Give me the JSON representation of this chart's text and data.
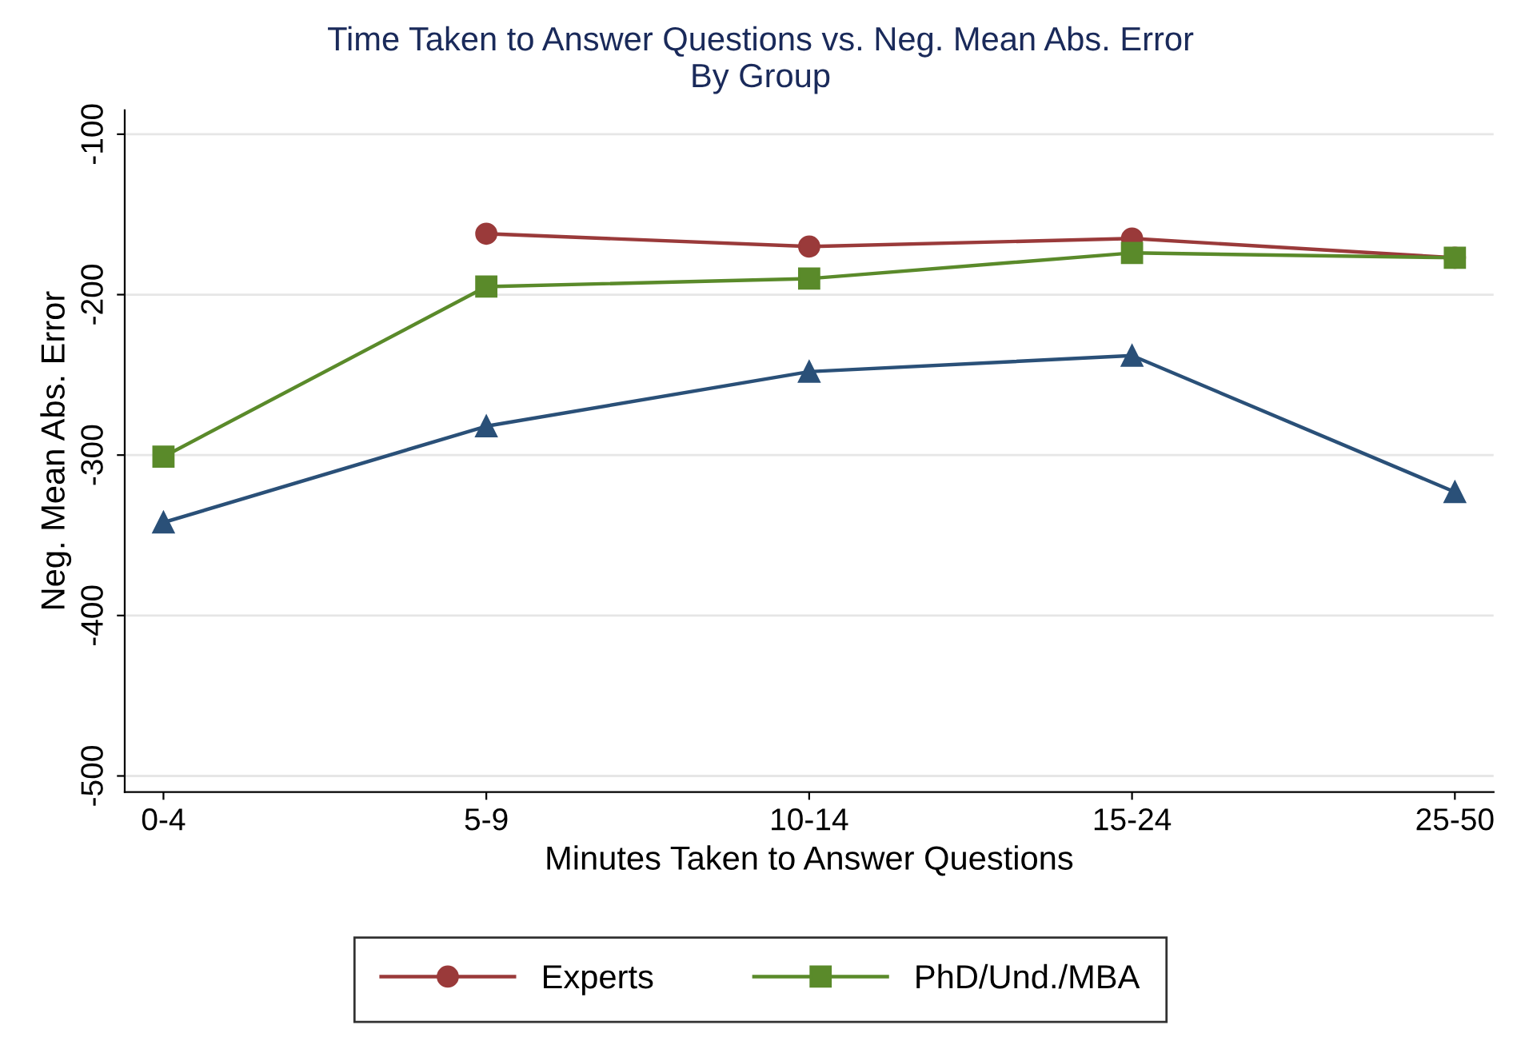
{
  "chart_data": {
    "type": "line",
    "title": "Time Taken to Answer Questions vs. Neg. Mean Abs. Error",
    "subtitle": "By Group",
    "xlabel": "Minutes Taken to Answer Questions",
    "ylabel": "Neg. Mean Abs. Error",
    "categories": [
      "0-4",
      "5-9",
      "10-14",
      "15-24",
      "25-50"
    ],
    "series": [
      {
        "name": "Experts",
        "color": "#9a3a3a",
        "marker": "circle",
        "values": [
          null,
          -162,
          -170,
          -165,
          -177
        ]
      },
      {
        "name": "PhD/Und./MBA",
        "color": "#5a8a2a",
        "marker": "square",
        "values": [
          -301,
          -195,
          -190,
          -174,
          -177
        ]
      },
      {
        "color": "#2a5078",
        "marker": "triangle",
        "values": [
          -342,
          -282,
          -248,
          -238,
          -323
        ]
      }
    ],
    "ylim": [
      -510,
      -85
    ],
    "yticks": [
      -100,
      -200,
      -300,
      -400,
      -500
    ],
    "grid": "y",
    "legend": "bottom",
    "line_style": "solid"
  }
}
